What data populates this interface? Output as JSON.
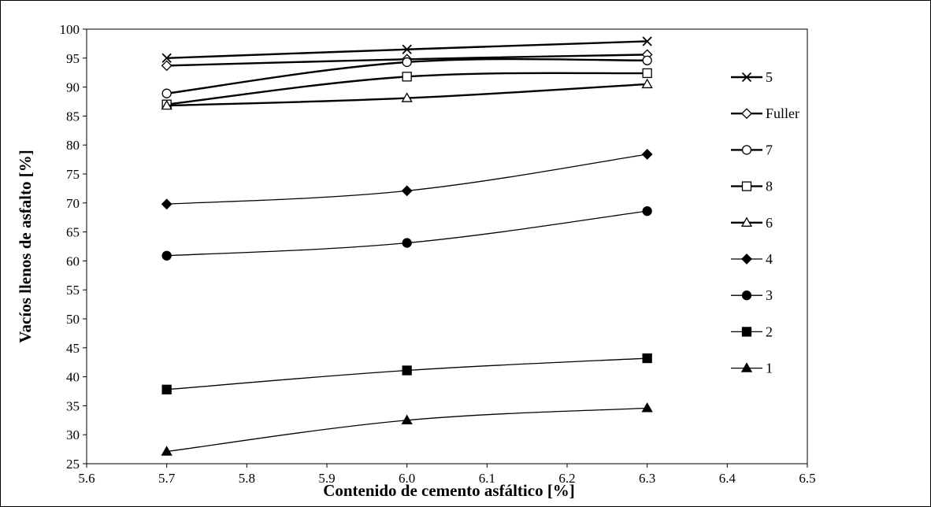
{
  "chart_data": {
    "type": "line",
    "title": "",
    "xlabel": "Contenido de cemento asfáltico [%]",
    "ylabel": "Vacíos llenos de asfalto [%]",
    "xlim": [
      5.6,
      6.5
    ],
    "ylim": [
      25,
      100
    ],
    "x_ticks": [
      5.6,
      5.7,
      5.8,
      5.9,
      6.0,
      6.1,
      6.2,
      6.3,
      6.4,
      6.5
    ],
    "x_tick_labels": [
      "5.6",
      "5.7",
      "5.8",
      "5.9",
      "6.0",
      "6.1",
      "6.2",
      "6.3",
      "6.4",
      "6.5"
    ],
    "y_ticks": [
      25,
      30,
      35,
      40,
      45,
      50,
      55,
      60,
      65,
      70,
      75,
      80,
      85,
      90,
      95,
      100
    ],
    "y_tick_labels": [
      "25",
      "30",
      "35",
      "40",
      "45",
      "50",
      "55",
      "60",
      "65",
      "70",
      "75",
      "80",
      "85",
      "90",
      "95",
      "100"
    ],
    "grid": false,
    "legend_position": "right",
    "x": [
      5.7,
      6.0,
      6.3
    ],
    "series": [
      {
        "name": "5",
        "marker": "x",
        "bold": true,
        "values": [
          95.0,
          96.5,
          97.9
        ]
      },
      {
        "name": "Fuller",
        "marker": "diamond-open",
        "bold": true,
        "values": [
          93.7,
          94.8,
          95.6
        ]
      },
      {
        "name": "7",
        "marker": "circle-open",
        "bold": true,
        "values": [
          88.9,
          94.3,
          94.6
        ]
      },
      {
        "name": "8",
        "marker": "square-open",
        "bold": true,
        "values": [
          87.0,
          91.8,
          92.4
        ]
      },
      {
        "name": "6",
        "marker": "triangle-open",
        "bold": true,
        "values": [
          86.8,
          88.1,
          90.5
        ]
      },
      {
        "name": "4",
        "marker": "diamond-filled",
        "bold": false,
        "values": [
          69.8,
          72.1,
          78.4
        ]
      },
      {
        "name": "3",
        "marker": "circle-filled",
        "bold": false,
        "values": [
          60.9,
          63.1,
          68.6
        ]
      },
      {
        "name": "2",
        "marker": "square-filled",
        "bold": false,
        "values": [
          37.8,
          41.1,
          43.2
        ]
      },
      {
        "name": "1",
        "marker": "triangle-filled",
        "bold": false,
        "values": [
          27.1,
          32.5,
          34.6
        ]
      }
    ]
  }
}
